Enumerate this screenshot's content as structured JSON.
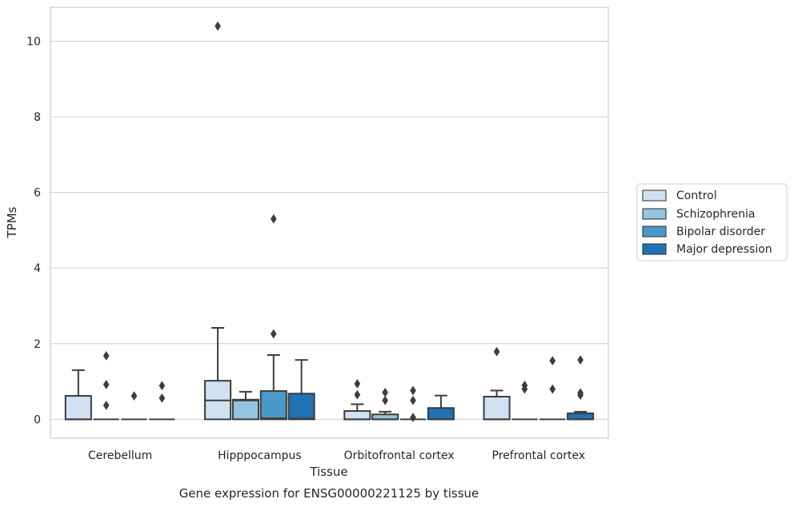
{
  "chart_data": {
    "type": "box",
    "caption": "Gene expression for ENSG00000221125 by tissue",
    "xlabel": "Tissue",
    "ylabel": "TPMs",
    "ylim": [
      -0.5,
      10.9
    ],
    "yticks": [
      0,
      2,
      4,
      6,
      8,
      10
    ],
    "grid": true,
    "legend_position": "right",
    "categories": [
      "Cerebellum",
      "Hipppocampus",
      "Orbitofrontal cortex",
      "Prefrontal cortex"
    ],
    "series": [
      {
        "name": "Control",
        "color": "#d0e1f2",
        "boxes": [
          {
            "q1": 0,
            "median": 0,
            "q3": 0.62,
            "whisker_low": 0,
            "whisker_high": 1.3,
            "outliers": []
          },
          {
            "q1": 0,
            "median": 0.5,
            "q3": 1.02,
            "whisker_low": 0,
            "whisker_high": 2.42,
            "outliers": [
              10.4
            ]
          },
          {
            "q1": 0,
            "median": 0,
            "q3": 0.22,
            "whisker_low": 0,
            "whisker_high": 0.4,
            "outliers": [
              0.65,
              0.94
            ]
          },
          {
            "q1": 0,
            "median": 0,
            "q3": 0.6,
            "whisker_low": 0,
            "whisker_high": 0.76,
            "outliers": [
              1.79
            ]
          }
        ]
      },
      {
        "name": "Schizophrenia",
        "color": "#94c4df",
        "boxes": [
          {
            "q1": 0,
            "median": 0,
            "q3": 0,
            "whisker_low": 0,
            "whisker_high": 0,
            "outliers": [
              0.37,
              0.92,
              1.68
            ]
          },
          {
            "q1": 0,
            "median": 0.5,
            "q3": 0.52,
            "whisker_low": 0,
            "whisker_high": 0.73,
            "outliers": []
          },
          {
            "q1": 0,
            "median": 0,
            "q3": 0.13,
            "whisker_low": 0,
            "whisker_high": 0.2,
            "outliers": [
              0.5,
              0.71
            ]
          },
          {
            "q1": 0,
            "median": 0,
            "q3": 0,
            "whisker_low": 0,
            "whisker_high": 0,
            "outliers": [
              0.8,
              0.9
            ]
          }
        ]
      },
      {
        "name": "Bipolar disorder",
        "color": "#4a98c9",
        "boxes": [
          {
            "q1": 0,
            "median": 0,
            "q3": 0,
            "whisker_low": 0,
            "whisker_high": 0,
            "outliers": [
              0.62
            ]
          },
          {
            "q1": 0,
            "median": 0.03,
            "q3": 0.75,
            "whisker_low": 0,
            "whisker_high": 1.7,
            "outliers": [
              2.26,
              5.3
            ]
          },
          {
            "q1": 0,
            "median": 0,
            "q3": 0,
            "whisker_low": 0,
            "whisker_high": 0,
            "outliers": [
              0.05,
              0.5,
              0.76
            ]
          },
          {
            "q1": 0,
            "median": 0,
            "q3": 0,
            "whisker_low": 0,
            "whisker_high": 0,
            "outliers": [
              0.8,
              1.55
            ]
          }
        ]
      },
      {
        "name": "Major depression",
        "color": "#2171b5",
        "boxes": [
          {
            "q1": 0,
            "median": 0,
            "q3": 0,
            "whisker_low": 0,
            "whisker_high": 0,
            "outliers": [
              0.56,
              0.89
            ]
          },
          {
            "q1": 0,
            "median": 0.02,
            "q3": 0.68,
            "whisker_low": 0,
            "whisker_high": 1.57,
            "outliers": []
          },
          {
            "q1": 0,
            "median": 0,
            "q3": 0.3,
            "whisker_low": 0,
            "whisker_high": 0.63,
            "outliers": []
          },
          {
            "q1": 0,
            "median": 0,
            "q3": 0.16,
            "whisker_low": 0,
            "whisker_high": 0.2,
            "outliers": [
              0.64,
              0.7,
              1.57
            ]
          }
        ]
      }
    ]
  }
}
